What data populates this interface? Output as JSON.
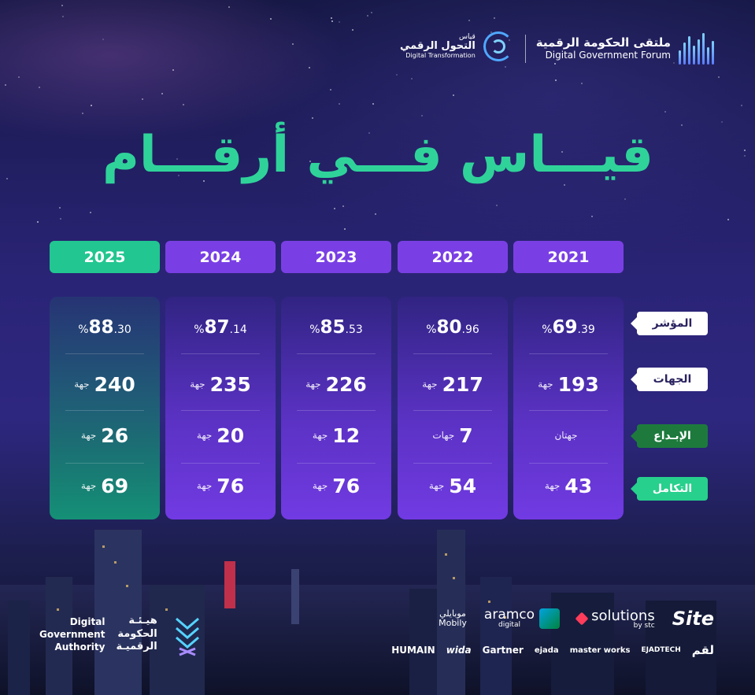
{
  "header": {
    "dgf": {
      "ar": "ملتقى الحكومة الرقمية",
      "en": "Digital Government Forum"
    },
    "qiyas": {
      "line1": "قياس",
      "line2": "التحول الرقمي",
      "line3": "Digital Transformation"
    },
    "headline": "قيـــاس فـــي أرقـــام"
  },
  "labels": {
    "index": "المؤشر",
    "entities": "الجهات",
    "creativity": "الإبـداع",
    "integration": "التكامل"
  },
  "columns": [
    {
      "year": "2025",
      "current": true,
      "index_int": "88",
      "index_dec": ".30",
      "pct": "%",
      "entities": "240",
      "entities_unit": "جهة",
      "creativity": "26",
      "creativity_unit": "جهة",
      "integration": "69",
      "integration_unit": "جهة"
    },
    {
      "year": "2024",
      "current": false,
      "index_int": "87",
      "index_dec": ".14",
      "pct": "%",
      "entities": "235",
      "entities_unit": "جهة",
      "creativity": "20",
      "creativity_unit": "جهة",
      "integration": "76",
      "integration_unit": "جهة"
    },
    {
      "year": "2023",
      "current": false,
      "index_int": "85",
      "index_dec": ".53",
      "pct": "%",
      "entities": "226",
      "entities_unit": "جهة",
      "creativity": "12",
      "creativity_unit": "جهة",
      "integration": "76",
      "integration_unit": "جهة"
    },
    {
      "year": "2022",
      "current": false,
      "index_int": "80",
      "index_dec": ".96",
      "pct": "%",
      "entities": "217",
      "entities_unit": "جهة",
      "creativity": "7",
      "creativity_unit": "جهات",
      "integration": "54",
      "integration_unit": "جهة"
    },
    {
      "year": "2021",
      "current": false,
      "index_int": "69",
      "index_dec": ".39",
      "pct": "%",
      "entities": "193",
      "entities_unit": "جهة",
      "creativity": "",
      "creativity_unit": "جهتان",
      "integration": "43",
      "integration_unit": "جهة"
    }
  ],
  "footer": {
    "dga": {
      "en1": "Digital",
      "en2": "Government",
      "en3": "Authority",
      "ar1": "هيـئـة",
      "ar2": "الحكومة",
      "ar3": "الرقميـة"
    },
    "sponsors_row1": {
      "site": "Site",
      "solutions": "solutions",
      "solutions_by": "by stc",
      "aramco": "aramco",
      "aramco_sub": "digital",
      "mobily_ar": "موبايلي",
      "mobily_en": "Mobily"
    },
    "sponsors_row2": {
      "humain": "HUMAIN",
      "wida": "wida",
      "gartner": "Gartner",
      "ejada": "ejada",
      "master": "master works",
      "ejad": "EJADTECH",
      "elm": "لقم"
    }
  },
  "colors": {
    "accent_green": "#2fd39a",
    "badge_purple": "#7a3fe4",
    "badge_green": "#22c690",
    "bg": "#2a2476"
  }
}
